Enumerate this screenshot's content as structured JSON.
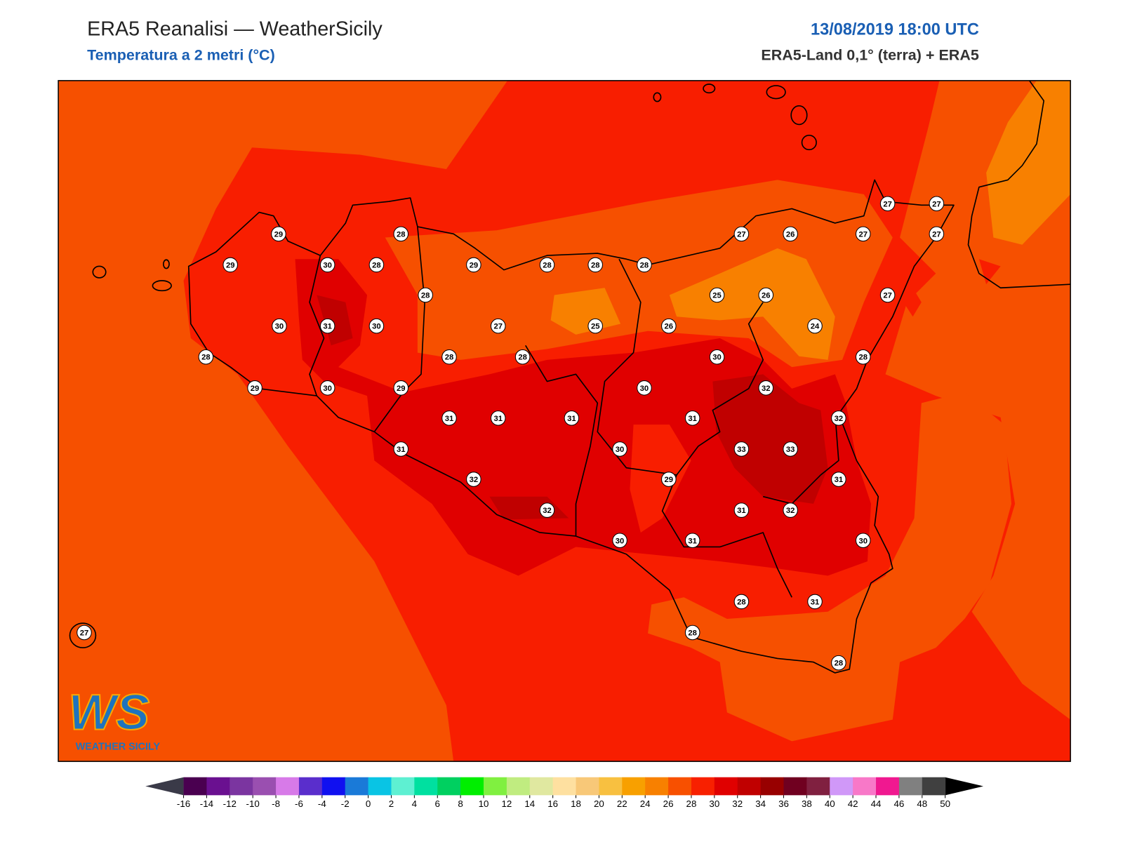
{
  "header": {
    "title": "ERA5 Reanalisi — WeatherSicily",
    "subtitle": "Temperatura a 2 metri (°C)",
    "datetime": "13/08/2019 18:00 UTC",
    "source": "ERA5-Land 0,1° (terra) + ERA5"
  },
  "stations": [
    29,
    28,
    29,
    30,
    28,
    29,
    28,
    28,
    28,
    28,
    30,
    31,
    30,
    27,
    25,
    26,
    28,
    28,
    28,
    29,
    30,
    29,
    30,
    31,
    31,
    31,
    31,
    32,
    32,
    30,
    29,
    30,
    31,
    31,
    30,
    32,
    33,
    33,
    31,
    32,
    32,
    31,
    30,
    31,
    28,
    28,
    28,
    25,
    26,
    24,
    28,
    27,
    27,
    26,
    27,
    27,
    27,
    27,
    27
  ],
  "colorbar": {
    "ticks": [
      -16,
      -14,
      -12,
      -10,
      -8,
      -6,
      -4,
      -2,
      0,
      2,
      4,
      6,
      8,
      10,
      12,
      14,
      16,
      18,
      20,
      22,
      24,
      26,
      28,
      30,
      32,
      34,
      36,
      38,
      40,
      42,
      44,
      46,
      48,
      50
    ],
    "colors": [
      "#4a0050",
      "#6a1090",
      "#7b35a0",
      "#9a4fb0",
      "#d77ae8",
      "#5a2ecc",
      "#1010f0",
      "#1a7ad8",
      "#09c4e4",
      "#5ef0d2",
      "#00e0a0",
      "#00d060",
      "#00ee00",
      "#80f040",
      "#c0ec80",
      "#e0e8a0",
      "#fee0a0",
      "#f8c878",
      "#f8c040",
      "#f8a000",
      "#f88000",
      "#f85000",
      "#f82000",
      "#e00000",
      "#c00000",
      "#980000",
      "#700020",
      "#802040",
      "#d098f8",
      "#f878c8",
      "#f01890",
      "#808080",
      "#404040"
    ],
    "under_color": "#3a3a48",
    "over_color": "#000000"
  },
  "logo": {
    "mark": "WS",
    "caption": "WEATHER SICILY"
  }
}
